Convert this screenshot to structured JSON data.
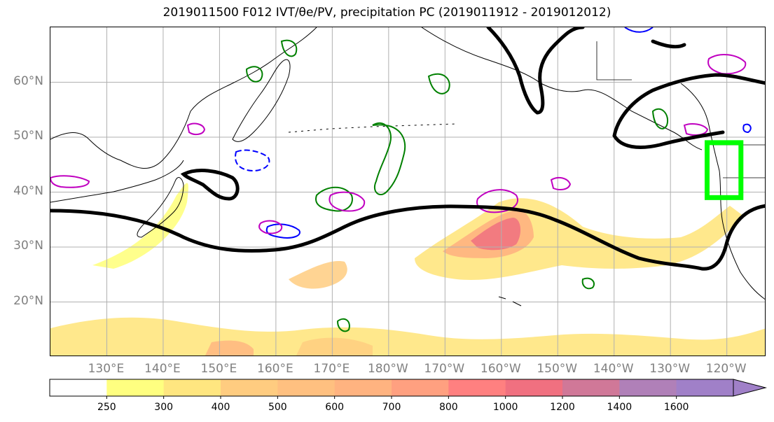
{
  "title": "2019011500 F012 IVT/θe/PV, precipitation PC (2019011912 - 2019012012)",
  "map": {
    "lat_labels": [
      "60°N",
      "50°N",
      "40°N",
      "30°N",
      "20°N"
    ],
    "lat_values": [
      60,
      50,
      40,
      30,
      20
    ],
    "lon_labels": [
      "130°E",
      "140°E",
      "150°E",
      "160°E",
      "170°E",
      "180°W",
      "170°W",
      "160°W",
      "150°W",
      "140°W",
      "130°W",
      "120°W"
    ],
    "lon_values": [
      130,
      140,
      150,
      160,
      170,
      180,
      190,
      200,
      210,
      220,
      230,
      240
    ],
    "lon_range_deg": [
      120,
      247
    ],
    "lat_range_deg": [
      10,
      70
    ],
    "highlight_box": {
      "lon": [
        236.5,
        242.5
      ],
      "lat": [
        39,
        49
      ],
      "color": "#00ff00"
    },
    "colors": {
      "grid": "#b0b0b0",
      "coast": "#000000",
      "theta_e_contour": "#000000",
      "pv_contour": "#008000",
      "pv_negative_contour": "#0000ff",
      "magenta_contour": "#c000c0"
    }
  },
  "colorbar": {
    "tick_labels": [
      "250",
      "300",
      "400",
      "500",
      "600",
      "700",
      "800",
      "1000",
      "1200",
      "1400",
      "1600"
    ],
    "tick_values": [
      250,
      300,
      400,
      500,
      600,
      700,
      800,
      1000,
      1200,
      1400,
      1600
    ],
    "colors": [
      "#ffffff",
      "#ffff80",
      "#ffe680",
      "#ffcc80",
      "#ffc080",
      "#ffb380",
      "#ffa080",
      "#ff8080",
      "#f07080",
      "#d07898",
      "#b080b8",
      "#a080c8"
    ],
    "extend": "max"
  }
}
